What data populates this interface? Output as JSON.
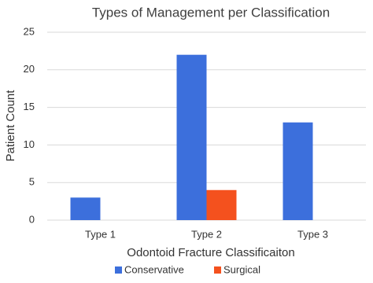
{
  "chart_data": {
    "type": "bar",
    "title": "Types of Management per Classification",
    "x_label": "Odontoid Fracture Classificaiton",
    "y_label": "Patient Count",
    "categories": [
      "Type 1",
      "Type 2",
      "Type 3"
    ],
    "series": [
      {
        "name": "Conservative",
        "color": "#3c6fdc",
        "values": [
          3,
          22,
          13
        ]
      },
      {
        "name": "Surgical",
        "color": "#f4511e",
        "values": [
          0,
          4,
          0
        ]
      }
    ],
    "ylim": [
      0,
      25
    ],
    "yticks": [
      0,
      5,
      10,
      15,
      20,
      25
    ],
    "grid": true,
    "legend": "bottom"
  }
}
